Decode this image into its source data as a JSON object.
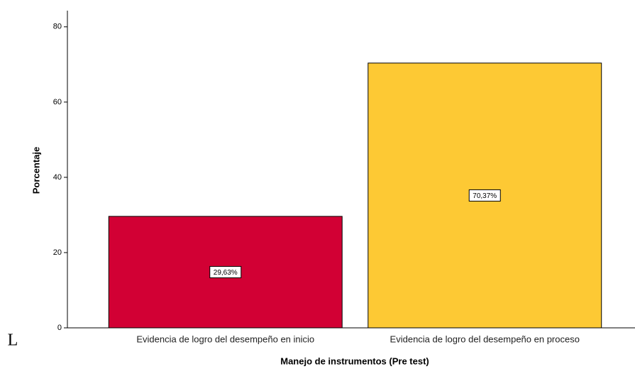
{
  "chart_data": {
    "type": "bar",
    "x_label": "Manejo de instrumentos (Pre test)",
    "y_label": "Porcentaje",
    "categories": [
      "Evidencia de logro del desempeño en inicio",
      "Evidencia de logro del desempeño en proceso"
    ],
    "values": [
      29.63,
      70.37
    ],
    "value_labels": [
      "29,63%",
      "70,37%"
    ],
    "colors": [
      "#d20034",
      "#fdc934"
    ],
    "ylim": [
      0,
      84.3
    ],
    "yticks": [
      0,
      20,
      40,
      60,
      80
    ],
    "annotation": "L"
  }
}
